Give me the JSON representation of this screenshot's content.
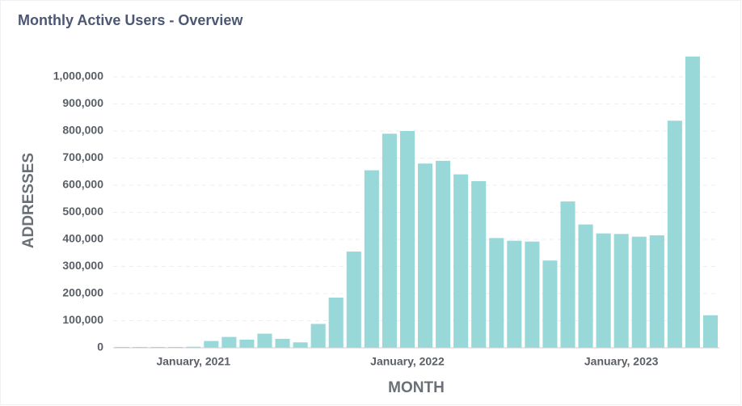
{
  "chart_data": {
    "type": "bar",
    "title": "Monthly Active Users - Overview",
    "x_label": "MONTH",
    "y_label": "ADDRESSES",
    "categories": [
      null,
      null,
      null,
      null,
      "January, 2021",
      null,
      null,
      null,
      null,
      null,
      null,
      null,
      null,
      null,
      null,
      null,
      "January, 2022",
      null,
      null,
      null,
      null,
      null,
      null,
      null,
      null,
      null,
      null,
      null,
      "January, 2023",
      null,
      null,
      null,
      null,
      null
    ],
    "values": [
      3000,
      3000,
      3000,
      3000,
      4000,
      25000,
      40000,
      30000,
      52000,
      33000,
      20000,
      88000,
      185000,
      355000,
      655000,
      790000,
      800000,
      680000,
      690000,
      640000,
      615000,
      405000,
      395000,
      392000,
      322000,
      540000,
      455000,
      422000,
      420000,
      410000,
      415000,
      838000,
      1075000,
      120000
    ],
    "color": "#99d8d9",
    "ylim": [
      0,
      1100000
    ],
    "yticks": [
      0,
      {
        "value": 100000,
        "label": "100,000"
      },
      {
        "value": 200000,
        "label": "200,000"
      },
      {
        "value": 300000,
        "label": "300,000"
      },
      {
        "value": 400000,
        "label": "400,000"
      },
      {
        "value": 500000,
        "label": "500,000"
      },
      {
        "value": 600000,
        "label": "600,000"
      },
      {
        "value": 700000,
        "label": "700,000"
      },
      {
        "value": 800000,
        "label": "800,000"
      },
      {
        "value": 900000,
        "label": "900,000"
      },
      {
        "value": 1000000,
        "label": "1,000,000"
      }
    ],
    "grid": true
  }
}
